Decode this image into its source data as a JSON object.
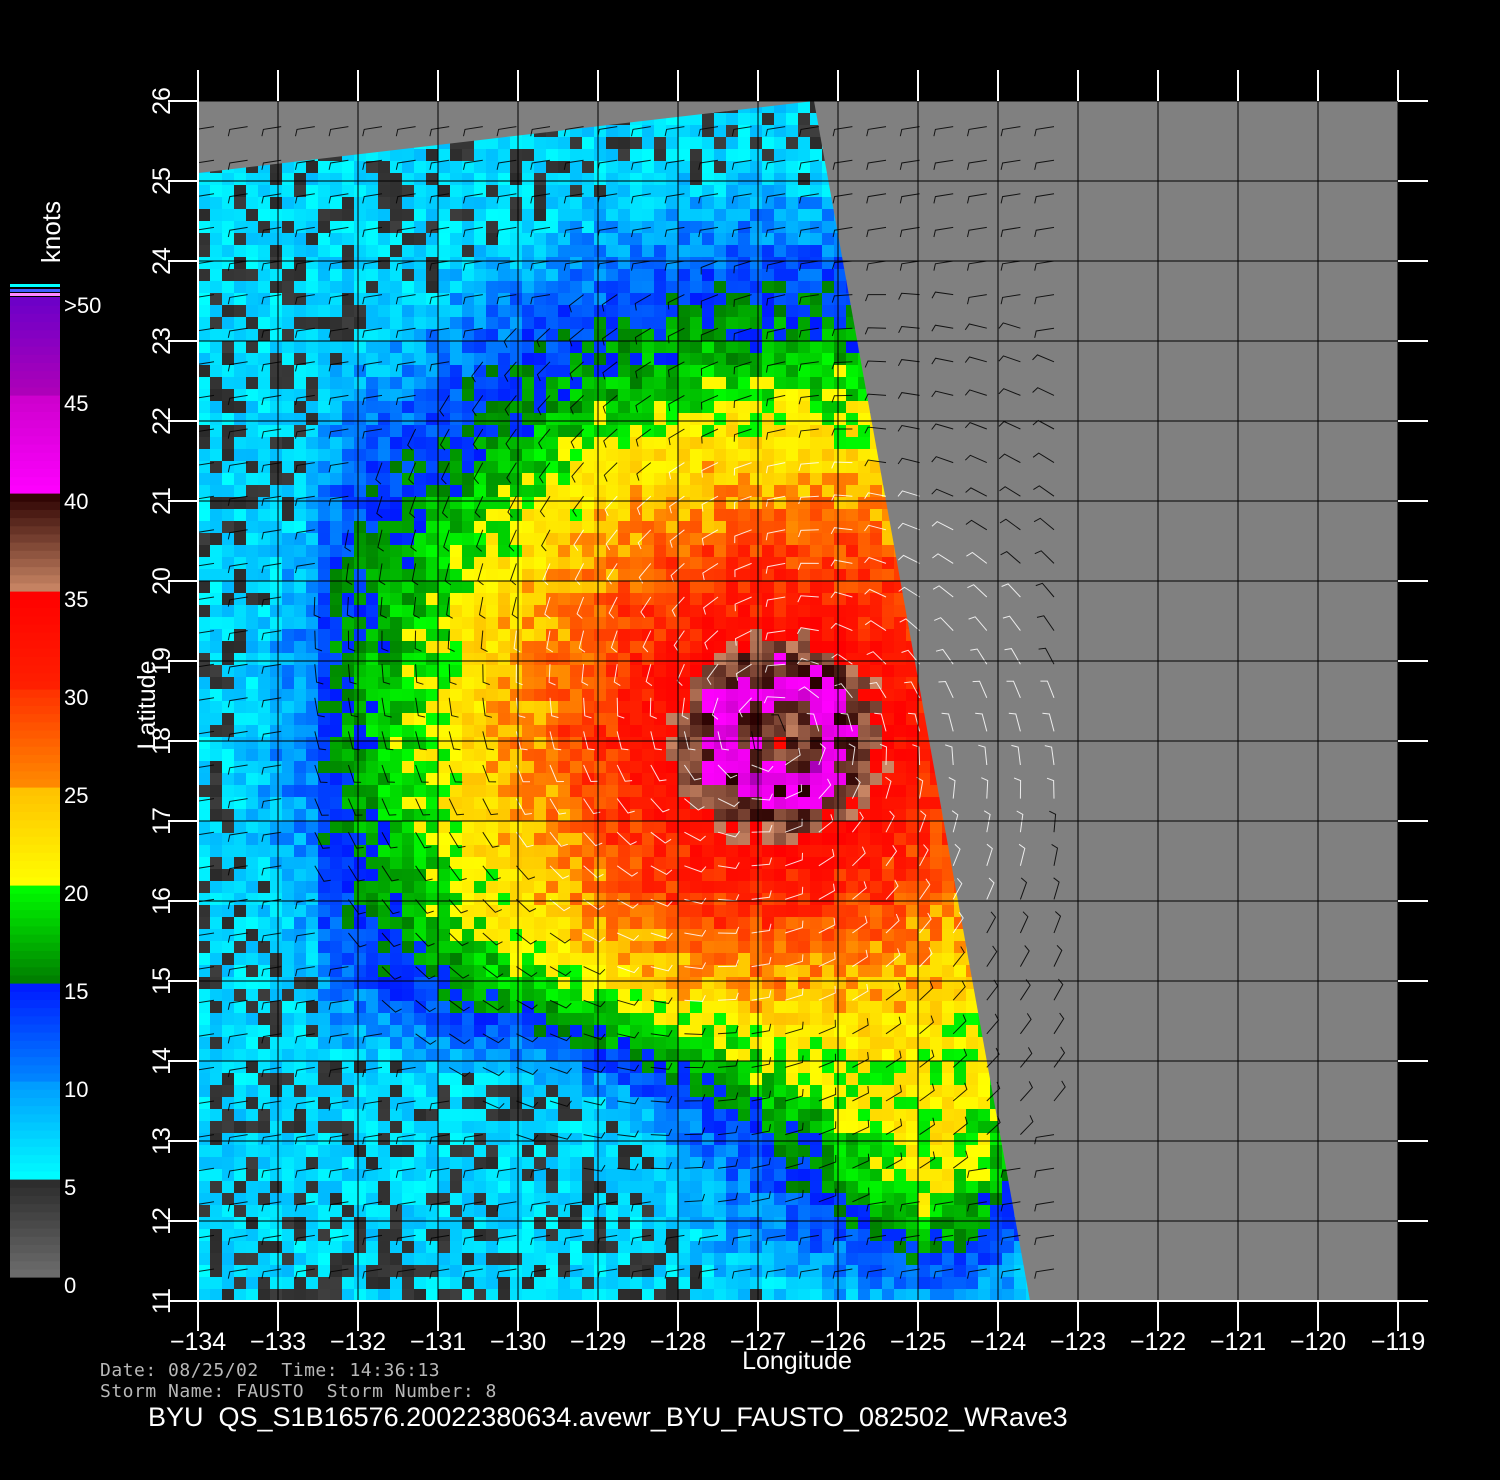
{
  "colorbar": {
    "unit_label": "knots",
    "tick_labels": [
      ">50",
      "45",
      "40",
      "35",
      "30",
      "25",
      "20",
      "15",
      "10",
      "5",
      "0"
    ],
    "bands": [
      {
        "from": 0,
        "to": 5,
        "colors": [
          "#6e6e6e",
          "#2a2a2a"
        ]
      },
      {
        "from": 5,
        "to": 10,
        "colors": [
          "#00ffff",
          "#0099ff"
        ]
      },
      {
        "from": 10,
        "to": 15,
        "colors": [
          "#0088ff",
          "#0018ff"
        ]
      },
      {
        "from": 15,
        "to": 20,
        "colors": [
          "#007a00",
          "#00ff00"
        ]
      },
      {
        "from": 20,
        "to": 25,
        "colors": [
          "#ffff00",
          "#ffc000"
        ]
      },
      {
        "from": 25,
        "to": 30,
        "colors": [
          "#ff8c00",
          "#ff3000"
        ]
      },
      {
        "from": 30,
        "to": 35,
        "colors": [
          "#ff2000",
          "#ff0000"
        ]
      },
      {
        "from": 35,
        "to": 40,
        "colors": [
          "#cc8866",
          "#2a0000"
        ]
      },
      {
        "from": 40,
        "to": 45,
        "colors": [
          "#ff00ff",
          "#cc00cc"
        ]
      },
      {
        "from": 45,
        "to": 50,
        "colors": [
          "#b000b8",
          "#6a00c8"
        ]
      }
    ]
  },
  "chart_data": {
    "type": "heatmap",
    "title": "",
    "xlabel": "Longitude",
    "ylabel": "Latitude",
    "xlim": [
      -134,
      -119
    ],
    "ylim": [
      11,
      26
    ],
    "x_ticks": [
      "-134",
      "-133",
      "-132",
      "-131",
      "-130",
      "-129",
      "-128",
      "-127",
      "-126",
      "-125",
      "-124",
      "-123",
      "-122",
      "-121",
      "-120",
      "-119"
    ],
    "y_ticks": [
      "11",
      "12",
      "13",
      "14",
      "15",
      "16",
      "17",
      "18",
      "19",
      "20",
      "21",
      "22",
      "23",
      "24",
      "25",
      "26"
    ],
    "grid": true,
    "variable": "wind speed (knots)",
    "swath_corners": {
      "top_left": [
        -134,
        25.1
      ],
      "top_right": [
        -126.3,
        26
      ],
      "bottom_right": [
        -123.6,
        11
      ],
      "bottom_left": [
        -134,
        11
      ]
    },
    "storm_center": {
      "lon": -126.8,
      "lat": 18.1,
      "max_wind_knots": 50
    },
    "no_data_color": "#808080"
  },
  "info": {
    "date_label": "Date:",
    "date_value": "08/25/02",
    "time_label": "Time:",
    "time_value": "14:36:13",
    "storm_name_label": "Storm Name:",
    "storm_name_value": "FAUSTO",
    "storm_number_label": "Storm Number:",
    "storm_number_value": "8"
  },
  "footer": {
    "product_id": "BYU  QS_S1B16576.20022380634.avewr_BYU_FAUSTO_082502_WRave3"
  }
}
